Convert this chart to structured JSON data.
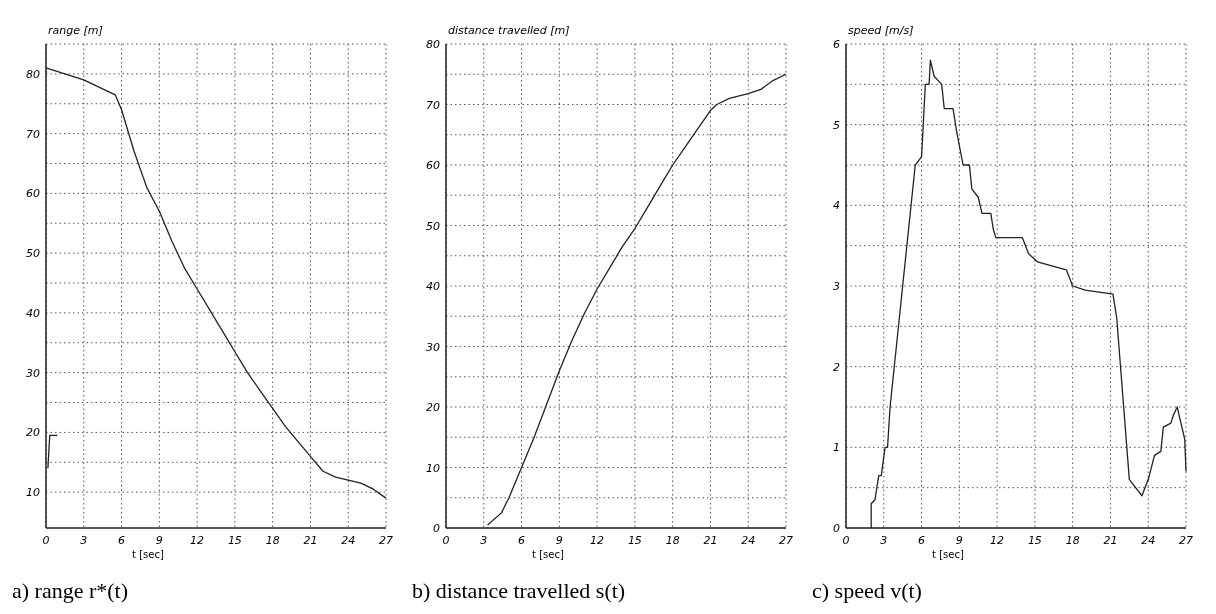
{
  "chart_data": [
    {
      "type": "line",
      "title": "a)  range r*(t)",
      "ylabel": "range [m]",
      "xlabel": "t [sec]",
      "xlim": [
        0,
        27
      ],
      "ylim": [
        4,
        85
      ],
      "xticks": [
        0,
        3,
        6,
        9,
        12,
        15,
        18,
        21,
        24,
        27
      ],
      "yticks": [
        10,
        {
          "value": 15,
          "label": null
        },
        20,
        {
          "value": 25,
          "label": null
        },
        30,
        {
          "value": 35,
          "label": null
        },
        40,
        {
          "value": 45,
          "label": null
        },
        50,
        {
          "value": 55,
          "label": null
        },
        60,
        {
          "value": 65,
          "label": null
        },
        70,
        {
          "value": 75,
          "label": null
        },
        80,
        {
          "value": 85,
          "label": null
        }
      ],
      "grid": true,
      "line_style": "solid",
      "series": [
        {
          "color": "#222222",
          "x": [
            0,
            1.5,
            3,
            4,
            5,
            5.5,
            6,
            7,
            8,
            9,
            10,
            11,
            12,
            13,
            14,
            15,
            16,
            17,
            18,
            19,
            20,
            21,
            22,
            23,
            24,
            25,
            26,
            27
          ],
          "values": [
            81,
            80,
            79,
            78,
            77,
            76.5,
            74,
            67,
            61,
            57,
            52,
            47.5,
            44,
            40.5,
            37,
            33.5,
            30,
            27,
            24,
            21,
            18.5,
            16,
            13.5,
            12.5,
            12,
            11.5,
            10.5,
            9
          ]
        },
        {
          "color": "#222222",
          "x": [
            0.15,
            0.3,
            0.9
          ],
          "values": [
            14,
            19.5,
            19.5
          ]
        }
      ]
    },
    {
      "type": "line",
      "title": "b)  distance travelled s(t)",
      "ylabel": "distance travelled   [m]",
      "xlabel": "t [sec]",
      "xlim": [
        0,
        27
      ],
      "ylim": [
        0,
        80
      ],
      "xticks": [
        0,
        3,
        6,
        9,
        12,
        15,
        18,
        21,
        24,
        27
      ],
      "yticks": [
        0,
        {
          "value": 5,
          "label": null
        },
        10,
        {
          "value": 15,
          "label": null
        },
        20,
        {
          "value": 25,
          "label": null
        },
        30,
        {
          "value": 35,
          "label": null
        },
        40,
        {
          "value": 45,
          "label": null
        },
        50,
        {
          "value": 55,
          "label": null
        },
        60,
        {
          "value": 65,
          "label": null
        },
        70,
        {
          "value": 75,
          "label": null
        },
        80
      ],
      "grid": true,
      "line_style": "solid",
      "series": [
        {
          "color": "#222222",
          "x": [
            3.3,
            4.4,
            5,
            6,
            7,
            8,
            9,
            10,
            11,
            12,
            13,
            14,
            15,
            16,
            17,
            18,
            19,
            20,
            21,
            21.5,
            22.5,
            24,
            25,
            26,
            27
          ],
          "values": [
            0.5,
            2.5,
            5,
            10,
            15,
            20.5,
            26,
            31,
            35.5,
            39.5,
            43,
            46.5,
            49.5,
            53,
            56.5,
            60,
            63,
            66,
            69,
            70,
            71,
            71.8,
            72.5,
            74,
            75
          ]
        }
      ]
    },
    {
      "type": "line",
      "title": "c)  speed v(t)",
      "ylabel": "speed [m/s]",
      "xlabel": "t [sec]",
      "xlim": [
        0,
        27
      ],
      "ylim": [
        0,
        6
      ],
      "xticks": [
        0,
        3,
        6,
        9,
        12,
        15,
        18,
        21,
        24,
        27
      ],
      "yticks": [
        0,
        {
          "value": 0.5,
          "label": null
        },
        1,
        {
          "value": 1.5,
          "label": null
        },
        2,
        {
          "value": 2.5,
          "label": null
        },
        3,
        {
          "value": 3.5,
          "label": null
        },
        4,
        {
          "value": 4.5,
          "label": null
        },
        5,
        {
          "value": 5.5,
          "label": null
        },
        6
      ],
      "grid": true,
      "line_style": "solid",
      "series": [
        {
          "color": "#222222",
          "x": [
            2,
            2,
            2.3,
            2.6,
            2.8,
            3.1,
            3.3,
            3.5,
            4.5,
            5.5,
            6,
            6.3,
            6.6,
            6.7,
            7,
            7.6,
            7.8,
            8.5,
            8.8,
            9.3,
            9.8,
            10,
            10.5,
            10.8,
            11.5,
            11.7,
            11.9,
            14,
            14.5,
            15.2,
            17.5,
            18,
            19,
            21.2,
            21.5,
            22,
            22.5,
            23,
            23.5,
            24,
            24.5,
            25,
            25.2,
            25.8,
            26,
            26.3,
            26.6,
            26.9,
            27
          ],
          "values": [
            0,
            0.3,
            0.35,
            0.65,
            0.65,
            1,
            1,
            1.5,
            3,
            4.5,
            4.6,
            5.5,
            5.5,
            5.8,
            5.6,
            5.5,
            5.2,
            5.2,
            4.9,
            4.5,
            4.5,
            4.2,
            4.1,
            3.9,
            3.9,
            3.7,
            3.6,
            3.6,
            3.4,
            3.3,
            3.2,
            3,
            2.95,
            2.9,
            2.6,
            1.6,
            0.6,
            0.5,
            0.4,
            0.6,
            0.9,
            0.95,
            1.25,
            1.3,
            1.4,
            1.5,
            1.3,
            1.1,
            0.7
          ]
        }
      ]
    }
  ]
}
